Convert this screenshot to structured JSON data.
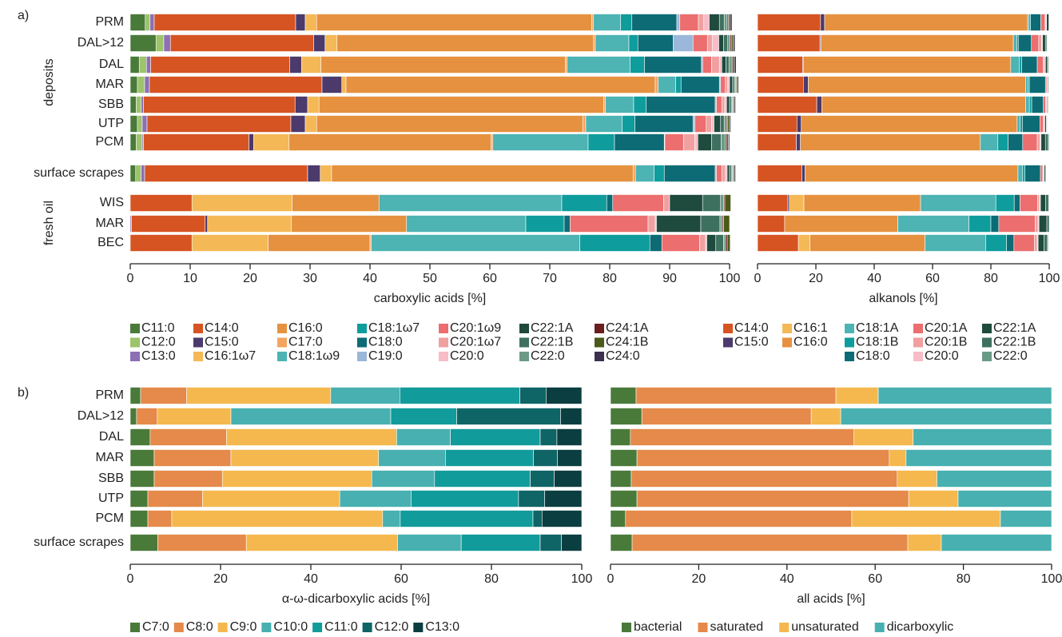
{
  "chart_data": [
    {
      "type": "bar",
      "orientation": "horizontal",
      "stacked": true,
      "panel": "a)",
      "row_groups": [
        "deposits",
        "fresh oil"
      ],
      "xlabel": "carboxylic acids [%]",
      "categories": [
        "PRM",
        "DAL>12",
        "DAL",
        "MAR",
        "SBB",
        "UTP",
        "PCM",
        "surface scrapes",
        "WIS",
        "MAR",
        "BEC"
      ],
      "xlim": [
        0,
        100
      ],
      "xticks": [
        0,
        10,
        20,
        30,
        40,
        50,
        60,
        70,
        80,
        90,
        100
      ],
      "series": [
        {
          "name": "C11:0",
          "color": "#4a7a3a",
          "values": [
            2.5,
            4.3,
            1.5,
            1.2,
            1,
            1.2,
            1,
            0.9,
            0,
            0,
            0
          ]
        },
        {
          "name": "C12:0",
          "color": "#9dc36b",
          "values": [
            0.8,
            1.3,
            1.2,
            1.2,
            0.8,
            0.8,
            1,
            0.9,
            0,
            0,
            0
          ]
        },
        {
          "name": "C13:0",
          "color": "#8c6fb5",
          "values": [
            0.7,
            1.1,
            0.7,
            0.8,
            0.4,
            0.8,
            0.2,
            0.6,
            0,
            0.2,
            0
          ]
        },
        {
          "name": "C14:0",
          "color": "#d65422",
          "values": [
            23.6,
            23.9,
            23.2,
            28.8,
            25.3,
            24,
            17.6,
            27.2,
            10.3,
            12.3,
            10.3
          ]
        },
        {
          "name": "C15:0",
          "color": "#4b3a6b",
          "values": [
            1.6,
            1.9,
            2,
            3.3,
            2.1,
            2.4,
            0.8,
            2.1,
            0,
            0.4,
            0
          ]
        },
        {
          "name": "C16:1ω7",
          "color": "#f5b857",
          "values": [
            1.9,
            2,
            3.2,
            0.7,
            1.9,
            1.9,
            5.9,
            1.9,
            16.7,
            14,
            12.7
          ]
        },
        {
          "name": "C16:0",
          "color": "#e6913f",
          "values": [
            45.9,
            42.8,
            40.8,
            51.6,
            47.5,
            44.4,
            33.7,
            50.3,
            14.5,
            19.2,
            17
          ]
        },
        {
          "name": "C17:0",
          "color": "#f4a460",
          "values": [
            0.3,
            0.3,
            0.3,
            0.5,
            0.3,
            0.5,
            0.3,
            0.4,
            0,
            0,
            0.2
          ]
        },
        {
          "name": "C18:1ω9",
          "color": "#4db3b3",
          "values": [
            4.5,
            5.6,
            10.5,
            2.9,
            4.7,
            6.1,
            15.9,
            3.1,
            30.5,
            19.9,
            34.8
          ]
        },
        {
          "name": "C18:1ω7",
          "color": "#0f9c9c",
          "values": [
            1.9,
            1.5,
            2.4,
            0.9,
            2.1,
            2.1,
            4.4,
            1.7,
            7.5,
            6.4,
            11.7
          ]
        },
        {
          "name": "C18:0",
          "color": "#0c6b75",
          "values": [
            7.5,
            5.9,
            9.5,
            6.4,
            11.5,
            9.7,
            8.3,
            8.5,
            1,
            1,
            2
          ]
        },
        {
          "name": "C19:0",
          "color": "#9bb7d9",
          "values": [
            0.5,
            3.3,
            0.2,
            0.2,
            0.2,
            0.3,
            0.1,
            0.2,
            0,
            0,
            0
          ]
        },
        {
          "name": "C20:1ω9",
          "color": "#ec6e6e",
          "values": [
            3.1,
            2.4,
            1.5,
            0.8,
            0.9,
            1.9,
            3.1,
            0.9,
            8.5,
            13,
            6.3
          ]
        },
        {
          "name": "C20:1ω7",
          "color": "#f0a0a0",
          "values": [
            0.9,
            0.8,
            1.3,
            0.4,
            0.5,
            0.9,
            1.9,
            0.6,
            1,
            1.2,
            1
          ]
        },
        {
          "name": "C20:0",
          "color": "#f7bcc6",
          "values": [
            0.9,
            1.1,
            0.4,
            0.3,
            0.3,
            0.4,
            0.5,
            0.3,
            0,
            0.2,
            0.2
          ]
        },
        {
          "name": "C22:1A",
          "color": "#1f4a3e",
          "values": [
            1.7,
            0.8,
            0.7,
            0.5,
            0.5,
            1.1,
            2.3,
            0.4,
            5.5,
            7.4,
            1.5
          ]
        },
        {
          "name": "C22:1B",
          "color": "#3e7060",
          "values": [
            0.8,
            0.7,
            0.5,
            0.3,
            0.3,
            0.6,
            1.6,
            0.3,
            3,
            3.2,
            1.3
          ]
        },
        {
          "name": "C22:0",
          "color": "#6a9a85",
          "values": [
            0.5,
            0.4,
            0.4,
            0.2,
            0.2,
            0.4,
            0.7,
            0.2,
            0.5,
            0.4,
            0.3
          ]
        },
        {
          "name": "C24:1A",
          "color": "#6b1e1e",
          "values": [
            0.2,
            0.2,
            0.2,
            0.1,
            0.1,
            0.2,
            0.2,
            0.1,
            0.2,
            0.2,
            0.3
          ]
        },
        {
          "name": "C24:1B",
          "color": "#4a5a1a",
          "values": [
            0.3,
            0.3,
            0.3,
            0.2,
            0.2,
            0.3,
            0.3,
            0.2,
            1,
            1,
            0.5
          ]
        },
        {
          "name": "C24:0",
          "color": "#3b3050",
          "values": [
            0.3,
            0.3,
            0.3,
            0.2,
            0.2,
            0.2,
            0.2,
            0.2,
            0,
            0,
            0
          ]
        }
      ]
    },
    {
      "type": "bar",
      "orientation": "horizontal",
      "stacked": true,
      "xlabel": "alkanols [%]",
      "xlim": [
        0,
        100
      ],
      "xticks": [
        0,
        20,
        40,
        60,
        80,
        100
      ],
      "series": [
        {
          "name": "C14:0",
          "color": "#d65422",
          "values": [
            21.6,
            21.4,
            15.5,
            15.7,
            20.3,
            13.5,
            13.3,
            15.2,
            10.4,
            9.3,
            14
          ]
        },
        {
          "name": "C15:0",
          "color": "#4b3a6b",
          "values": [
            1.4,
            0.3,
            0.3,
            1.7,
            1.7,
            1.5,
            1.4,
            1.1,
            0.5,
            0,
            0
          ]
        },
        {
          "name": "C16:1",
          "color": "#f5b857",
          "values": [
            0,
            0,
            0,
            0,
            0,
            0,
            0,
            0,
            5,
            0,
            4
          ]
        },
        {
          "name": "C16:0",
          "color": "#e6913f",
          "values": [
            69.6,
            66,
            71,
            74.5,
            69.9,
            74,
            61.7,
            73,
            40,
            38.8,
            39.4
          ]
        },
        {
          "name": "C18:1A",
          "color": "#4db3b3",
          "values": [
            0.5,
            1.2,
            3,
            0.8,
            1.3,
            1,
            6,
            1.6,
            25.8,
            24.4,
            20.8
          ]
        },
        {
          "name": "C18:1B",
          "color": "#0f9c9c",
          "values": [
            0.5,
            0.5,
            0.8,
            0.5,
            0.8,
            0.8,
            3.5,
            0.8,
            6.3,
            7.5,
            7.2
          ]
        },
        {
          "name": "C18:0",
          "color": "#0c6b75",
          "values": [
            3.5,
            4.5,
            5.3,
            5.5,
            4,
            6,
            5,
            5.3,
            2,
            2.7,
            2.5
          ]
        },
        {
          "name": "C20:1A",
          "color": "#ec6e6e",
          "values": [
            1.5,
            2.5,
            2,
            0.5,
            0.8,
            1.2,
            5,
            0.8,
            6,
            12.5,
            7
          ]
        },
        {
          "name": "C20:1B",
          "color": "#f0a0a0",
          "values": [
            0.3,
            1,
            0.5,
            0.2,
            0.3,
            0.3,
            1,
            0.3,
            0.7,
            1,
            1
          ]
        },
        {
          "name": "C20:0",
          "color": "#f7bcc6",
          "values": [
            0.2,
            0.3,
            0.3,
            0.1,
            0.2,
            0.2,
            0.3,
            0.2,
            0.3,
            0.3,
            0.3
          ]
        },
        {
          "name": "C22:1A",
          "color": "#1f4a3e",
          "values": [
            0.8,
            1,
            0.7,
            0.3,
            0.3,
            0.5,
            1.5,
            0.5,
            1.8,
            2.7,
            2
          ]
        },
        {
          "name": "C22:1B",
          "color": "#3e7060",
          "values": [
            0.2,
            0.5,
            0.3,
            0.1,
            0.2,
            0.2,
            1,
            0.2,
            1,
            0.8,
            1.2
          ]
        },
        {
          "name": "C22:0",
          "color": "#6a9a85",
          "values": [
            0.1,
            0.2,
            0.2,
            0.1,
            0.1,
            0.2,
            0.3,
            0.1,
            0.2,
            0,
            0.3
          ]
        }
      ]
    },
    {
      "type": "bar",
      "orientation": "horizontal",
      "stacked": true,
      "panel": "b)",
      "xlabel": "α-ω-dicarboxylic acids [%]",
      "categories": [
        "PRM",
        "DAL>12",
        "DAL",
        "MAR",
        "SBB",
        "UTP",
        "PCM",
        "surface scrapes"
      ],
      "xlim": [
        0,
        100
      ],
      "xticks": [
        0,
        20,
        40,
        60,
        80,
        100
      ],
      "series": [
        {
          "name": "C7:0",
          "color": "#4a7a3a",
          "values": [
            2.3,
            1.4,
            4.4,
            5.3,
            5.3,
            3.9,
            3.9,
            6.1
          ]
        },
        {
          "name": "C8:0",
          "color": "#e58a4a",
          "values": [
            10.2,
            4.6,
            16.9,
            17,
            15.1,
            12.1,
            5.3,
            19.6
          ]
        },
        {
          "name": "C9:0",
          "color": "#f5b84e",
          "values": [
            31.9,
            16.3,
            37.7,
            32.7,
            33.1,
            30.4,
            46.7,
            33.5
          ]
        },
        {
          "name": "C10:0",
          "color": "#48b0b0",
          "values": [
            15.3,
            35.4,
            11.9,
            14.8,
            13.9,
            15.8,
            3.9,
            14.1
          ]
        },
        {
          "name": "C11:0",
          "color": "#129b9b",
          "values": [
            26.6,
            14.6,
            19.9,
            19.5,
            21.2,
            23.8,
            29.4,
            17.5
          ]
        },
        {
          "name": "C12:0",
          "color": "#0f6466",
          "values": [
            5.8,
            23,
            3.7,
            5.3,
            5.3,
            5.8,
            2,
            4.7
          ]
        },
        {
          "name": "C13:0",
          "color": "#0b3e40",
          "values": [
            7.9,
            4.7,
            5.5,
            5.4,
            6.1,
            8.2,
            8.8,
            4.5
          ]
        }
      ]
    },
    {
      "type": "bar",
      "orientation": "horizontal",
      "stacked": true,
      "xlabel": "all acids [%]",
      "xlim": [
        0,
        100
      ],
      "xticks": [
        0,
        20,
        40,
        60,
        80,
        100
      ],
      "series": [
        {
          "name": "bacterial",
          "color": "#4a7a3a",
          "values": [
            5.8,
            7.1,
            4.5,
            6,
            4.7,
            6,
            3.4,
            4.9
          ]
        },
        {
          "name": "saturated",
          "color": "#e58a4a",
          "values": [
            45.3,
            38.4,
            50.7,
            57.2,
            60.3,
            61.6,
            51.3,
            62.5
          ]
        },
        {
          "name": "unsaturated",
          "color": "#f5b84e",
          "values": [
            9.6,
            6.7,
            13.4,
            3.8,
            9,
            11.2,
            33.7,
            7.6
          ]
        },
        {
          "name": "dicarboxylic",
          "color": "#48b0b0",
          "values": [
            39.3,
            47.8,
            31.4,
            33,
            26,
            21.2,
            11.6,
            25
          ]
        }
      ]
    }
  ]
}
